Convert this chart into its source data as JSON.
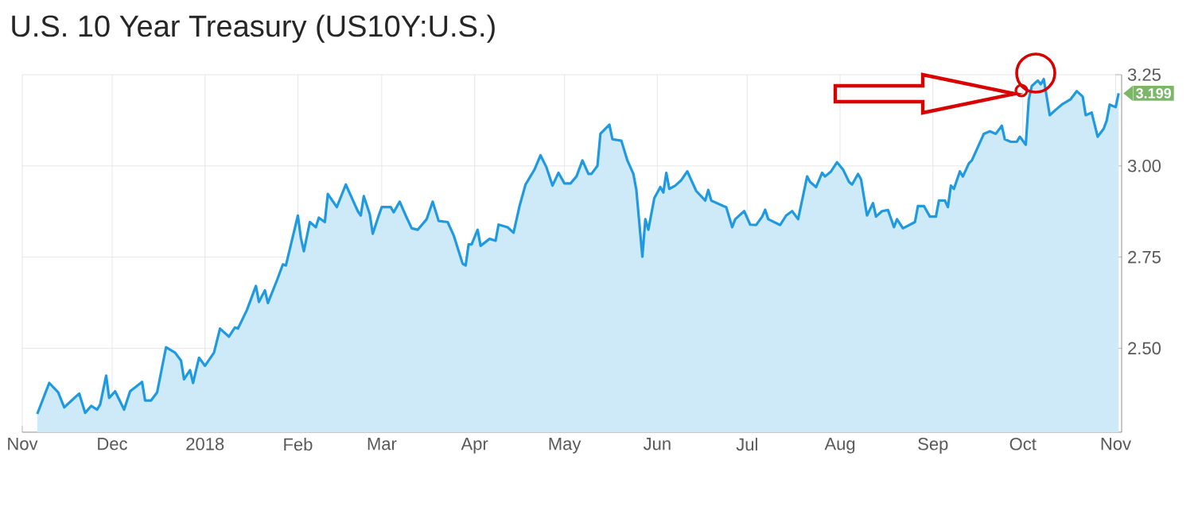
{
  "chart_data": {
    "type": "area",
    "title": "U.S. 10 Year Treasury (US10Y:U.S.)",
    "x": [
      "2017-11-06",
      "2017-11-10",
      "2017-11-13",
      "2017-11-15",
      "2017-11-18",
      "2017-11-20",
      "2017-11-22",
      "2017-11-24",
      "2017-11-26",
      "2017-11-27",
      "2017-11-29",
      "2017-11-30",
      "2017-12-02",
      "2017-12-05",
      "2017-12-07",
      "2017-12-11",
      "2017-12-12",
      "2017-12-14",
      "2017-12-16",
      "2017-12-19",
      "2017-12-22",
      "2017-12-24",
      "2017-12-25",
      "2017-12-27",
      "2017-12-28",
      "2017-12-30",
      "2018-01-01",
      "2018-01-04",
      "2018-01-06",
      "2018-01-09",
      "2018-01-11",
      "2018-01-12",
      "2018-01-15",
      "2018-01-18",
      "2018-01-19",
      "2018-01-21",
      "2018-01-22",
      "2018-01-25",
      "2018-01-27",
      "2018-01-28",
      "2018-02-01",
      "2018-02-02",
      "2018-02-03",
      "2018-02-05",
      "2018-02-07",
      "2018-02-08",
      "2018-02-10",
      "2018-02-11",
      "2018-02-14",
      "2018-02-17",
      "2018-02-21",
      "2018-02-22",
      "2018-02-23",
      "2018-02-25",
      "2018-02-26",
      "2018-02-28",
      "2018-03-01",
      "2018-03-04",
      "2018-03-05",
      "2018-03-07",
      "2018-03-09",
      "2018-03-11",
      "2018-03-13",
      "2018-03-16",
      "2018-03-18",
      "2018-03-20",
      "2018-03-23",
      "2018-03-25",
      "2018-03-28",
      "2018-03-29",
      "2018-03-30",
      "2018-03-31",
      "2018-04-02",
      "2018-04-03",
      "2018-04-06",
      "2018-04-08",
      "2018-04-09",
      "2018-04-12",
      "2018-04-14",
      "2018-04-16",
      "2018-04-18",
      "2018-04-21",
      "2018-04-23",
      "2018-04-25",
      "2018-04-27",
      "2018-04-29",
      "2018-05-01",
      "2018-05-03",
      "2018-05-05",
      "2018-05-07",
      "2018-05-09",
      "2018-05-10",
      "2018-05-12",
      "2018-05-13",
      "2018-05-16",
      "2018-05-17",
      "2018-05-20",
      "2018-05-22",
      "2018-05-24",
      "2018-05-25",
      "2018-05-27",
      "2018-05-28",
      "2018-05-29",
      "2018-05-31",
      "2018-06-02",
      "2018-06-03",
      "2018-06-04",
      "2018-06-05",
      "2018-06-07",
      "2018-06-09",
      "2018-06-11",
      "2018-06-13",
      "2018-06-14",
      "2018-06-17",
      "2018-06-18",
      "2018-06-19",
      "2018-06-23",
      "2018-06-24",
      "2018-06-26",
      "2018-06-27",
      "2018-06-30",
      "2018-07-02",
      "2018-07-04",
      "2018-07-06",
      "2018-07-07",
      "2018-07-08",
      "2018-07-12",
      "2018-07-14",
      "2018-07-16",
      "2018-07-18",
      "2018-07-21",
      "2018-07-22",
      "2018-07-24",
      "2018-07-26",
      "2018-07-27",
      "2018-07-29",
      "2018-07-31",
      "2018-08-02",
      "2018-08-04",
      "2018-08-05",
      "2018-08-07",
      "2018-08-08",
      "2018-08-10",
      "2018-08-12",
      "2018-08-13",
      "2018-08-15",
      "2018-08-17",
      "2018-08-19",
      "2018-08-20",
      "2018-08-22",
      "2018-08-26",
      "2018-08-27",
      "2018-08-29",
      "2018-08-31",
      "2018-09-02",
      "2018-09-03",
      "2018-09-05",
      "2018-09-06",
      "2018-09-07",
      "2018-09-08",
      "2018-09-10",
      "2018-09-11",
      "2018-09-13",
      "2018-09-14",
      "2018-09-18",
      "2018-09-20",
      "2018-09-22",
      "2018-09-24",
      "2018-09-25",
      "2018-09-27",
      "2018-09-29",
      "2018-09-30",
      "2018-10-02",
      "2018-10-03",
      "2018-10-04",
      "2018-10-06",
      "2018-10-07",
      "2018-10-08",
      "2018-10-10",
      "2018-10-12",
      "2018-10-14",
      "2018-10-17",
      "2018-10-19",
      "2018-10-21",
      "2018-10-22",
      "2018-10-24",
      "2018-10-26",
      "2018-10-28",
      "2018-10-29",
      "2018-10-30",
      "2018-11-01",
      "2018-11-02"
    ],
    "series": [
      {
        "color": "#1f9ae0",
        "values": [
          2.32,
          2.405,
          2.379,
          2.338,
          2.361,
          2.376,
          2.323,
          2.342,
          2.332,
          2.346,
          2.425,
          2.364,
          2.382,
          2.332,
          2.382,
          2.408,
          2.357,
          2.357,
          2.379,
          2.503,
          2.488,
          2.466,
          2.415,
          2.44,
          2.405,
          2.474,
          2.452,
          2.488,
          2.554,
          2.532,
          2.557,
          2.554,
          2.605,
          2.671,
          2.627,
          2.659,
          2.624,
          2.686,
          2.73,
          2.727,
          2.864,
          2.803,
          2.766,
          2.846,
          2.832,
          2.858,
          2.846,
          2.923,
          2.887,
          2.949,
          2.876,
          2.864,
          2.917,
          2.868,
          2.814,
          2.864,
          2.887,
          2.887,
          2.873,
          2.902,
          2.864,
          2.829,
          2.825,
          2.854,
          2.902,
          2.849,
          2.846,
          2.81,
          2.732,
          2.727,
          2.785,
          2.785,
          2.825,
          2.781,
          2.8,
          2.795,
          2.839,
          2.832,
          2.817,
          2.89,
          2.949,
          2.99,
          3.029,
          2.996,
          2.946,
          2.981,
          2.952,
          2.952,
          2.971,
          3.015,
          2.978,
          2.978,
          3.0,
          3.088,
          3.113,
          3.073,
          3.069,
          3.015,
          2.978,
          2.934,
          2.751,
          2.854,
          2.825,
          2.912,
          2.942,
          2.927,
          2.981,
          2.937,
          2.946,
          2.961,
          2.985,
          2.949,
          2.931,
          2.905,
          2.934,
          2.905,
          2.89,
          2.887,
          2.832,
          2.854,
          2.876,
          2.839,
          2.838,
          2.861,
          2.88,
          2.854,
          2.838,
          2.864,
          2.876,
          2.854,
          2.971,
          2.956,
          2.942,
          2.981,
          2.971,
          2.985,
          3.01,
          2.99,
          2.956,
          2.949,
          2.978,
          2.963,
          2.864,
          2.898,
          2.861,
          2.876,
          2.879,
          2.832,
          2.854,
          2.829,
          2.846,
          2.89,
          2.89,
          2.861,
          2.861,
          2.905,
          2.905,
          2.887,
          2.946,
          2.937,
          2.985,
          2.971,
          3.007,
          3.015,
          3.088,
          3.095,
          3.088,
          3.11,
          3.073,
          3.066,
          3.066,
          3.08,
          3.058,
          3.183,
          3.219,
          3.234,
          3.224,
          3.238,
          3.139,
          3.154,
          3.168,
          3.183,
          3.205,
          3.19,
          3.139,
          3.146,
          3.08,
          3.102,
          3.124,
          3.168,
          3.161,
          3.199
        ]
      }
    ],
    "xlim": [
      "2017-11-01",
      "2018-11-03"
    ],
    "xticks": [
      {
        "value": "2017-11-01",
        "label": "Nov"
      },
      {
        "value": "2017-12-01",
        "label": "Dec"
      },
      {
        "value": "2018-01-01",
        "label": "2018"
      },
      {
        "value": "2018-02-01",
        "label": "Feb"
      },
      {
        "value": "2018-03-01",
        "label": "Mar"
      },
      {
        "value": "2018-04-01",
        "label": "Apr"
      },
      {
        "value": "2018-05-01",
        "label": "May"
      },
      {
        "value": "2018-06-01",
        "label": "Jun"
      },
      {
        "value": "2018-07-01",
        "label": "Jul"
      },
      {
        "value": "2018-08-01",
        "label": "Aug"
      },
      {
        "value": "2018-09-01",
        "label": "Sep"
      },
      {
        "value": "2018-10-01",
        "label": "Oct"
      },
      {
        "value": "2018-11-01",
        "label": "Nov"
      }
    ],
    "ylim": [
      2.27,
      3.25
    ],
    "yticks": [
      {
        "value": 2.5,
        "label": "2.50"
      },
      {
        "value": 2.75,
        "label": "2.75"
      },
      {
        "value": 3.0,
        "label": "3.00"
      },
      {
        "value": 3.25,
        "label": "3.25"
      }
    ],
    "annotations": [
      {
        "text": "3.199",
        "x": "2018-11-02",
        "y": 3.199
      }
    ],
    "grid": true
  }
}
